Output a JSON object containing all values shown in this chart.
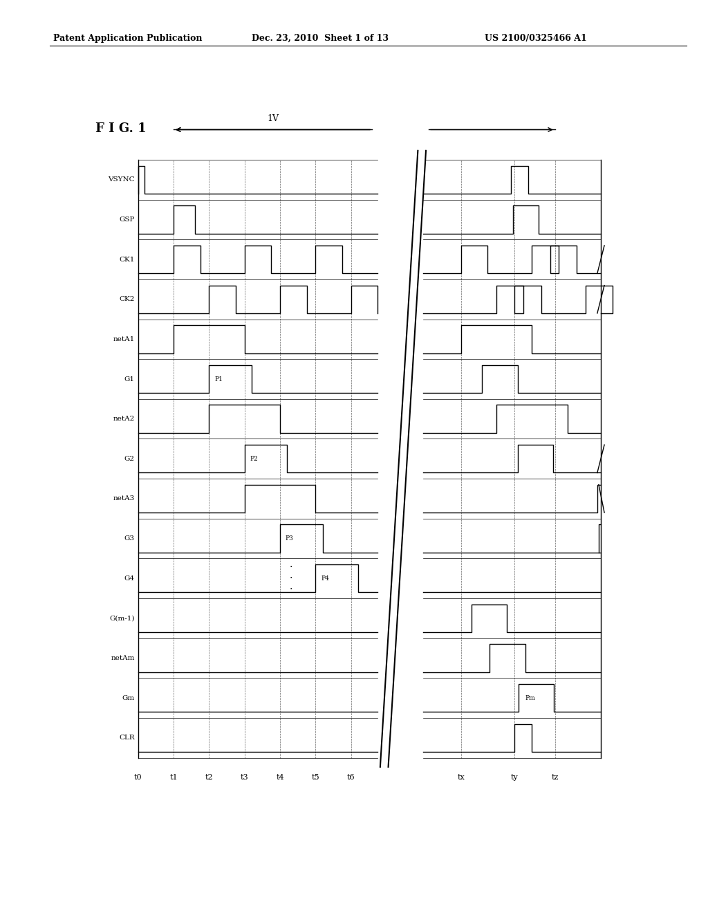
{
  "header_left": "Patent Application Publication",
  "header_mid": "Dec. 23, 2010  Sheet 1 of 13",
  "header_right": "US 2100/0325466 A1",
  "fig_label": "F I G. 1",
  "bg_color": "#ffffff",
  "signal_names": [
    "VSYNC",
    "GSP",
    "CK1",
    "CK2",
    "netA1",
    "G1",
    "netA2",
    "G2",
    "netA3",
    "G3",
    "G4",
    "G(m-1)",
    "netAm",
    "Gm",
    "CLR"
  ],
  "time_labels_left": [
    "t0",
    "t1",
    "t2",
    "t3",
    "t4",
    "t5",
    "t6"
  ],
  "time_labels_right": [
    "tx",
    "ty",
    "tz"
  ],
  "label_1v": "1V",
  "pulse_labels": [
    {
      "row": 5,
      "label": "P1"
    },
    {
      "row": 7,
      "label": "P2"
    },
    {
      "row": 9,
      "label": "P3"
    },
    {
      "row": 10,
      "label": "P4"
    },
    {
      "row": 13,
      "label": "Pm"
    }
  ]
}
